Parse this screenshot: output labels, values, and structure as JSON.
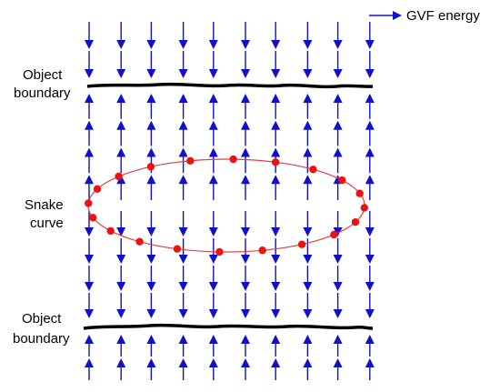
{
  "legend": {
    "arrow_label": "GVF energy"
  },
  "labels": {
    "top_boundary": [
      "Object",
      "boundary"
    ],
    "snake": [
      "Snake",
      "curve"
    ],
    "bottom_boundary": [
      "Object",
      "boundary"
    ]
  },
  "colors": {
    "arrow": "#1010cc",
    "boundary": "#000000",
    "snake_curve": "#e04040",
    "snake_points": "#ee1111"
  },
  "field": {
    "columns": 10,
    "regions": [
      {
        "name": "above-top-boundary",
        "direction": "down",
        "rows": 2
      },
      {
        "name": "between-boundaries-upper",
        "direction": "up",
        "rows": 4
      },
      {
        "name": "between-boundaries-lower",
        "direction": "down",
        "rows": 4
      },
      {
        "name": "below-bottom-boundary",
        "direction": "up",
        "rows": 2
      }
    ]
  },
  "snake": {
    "control_points": 20
  }
}
